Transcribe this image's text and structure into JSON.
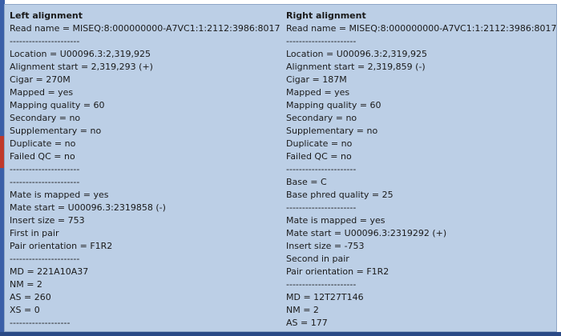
{
  "left": {
    "title": "Left alignment",
    "lines": [
      "Read name = MISEQ:8:000000000-A7VC1:1:2112:3986:8017",
      "----------------------",
      "Location = U00096.3:2,319,925",
      "Alignment start = 2,319,293 (+)",
      "Cigar = 270M",
      "Mapped = yes",
      "Mapping quality = 60",
      "Secondary = no",
      "Supplementary = no",
      "Duplicate = no",
      "Failed QC = no",
      "----------------------",
      "----------------------",
      "Mate is mapped = yes",
      "Mate start = U00096.3:2319858 (-)",
      "Insert size = 753",
      "First in pair",
      "Pair orientation = F1R2",
      "----------------------",
      "MD = 221A10A37",
      "NM = 2",
      "AS = 260",
      "XS = 0",
      "-------------------"
    ]
  },
  "right": {
    "title": "Right alignment",
    "lines": [
      "Read name = MISEQ:8:000000000-A7VC1:1:2112:3986:8017",
      "----------------------",
      "Location = U00096.3:2,319,925",
      "Alignment start = 2,319,859 (-)",
      "Cigar = 187M",
      "Mapped = yes",
      "Mapping quality = 60",
      "Secondary = no",
      "Supplementary = no",
      "Duplicate = no",
      "Failed QC = no",
      "----------------------",
      "Base = C",
      "Base phred quality = 25",
      "----------------------",
      "Mate is mapped = yes",
      "Mate start = U00096.3:2319292 (+)",
      "Insert size = -753",
      "Second in pair",
      "Pair orientation = F1R2",
      "----------------------",
      "MD = 12T27T146",
      "NM = 2",
      "AS = 177"
    ]
  }
}
